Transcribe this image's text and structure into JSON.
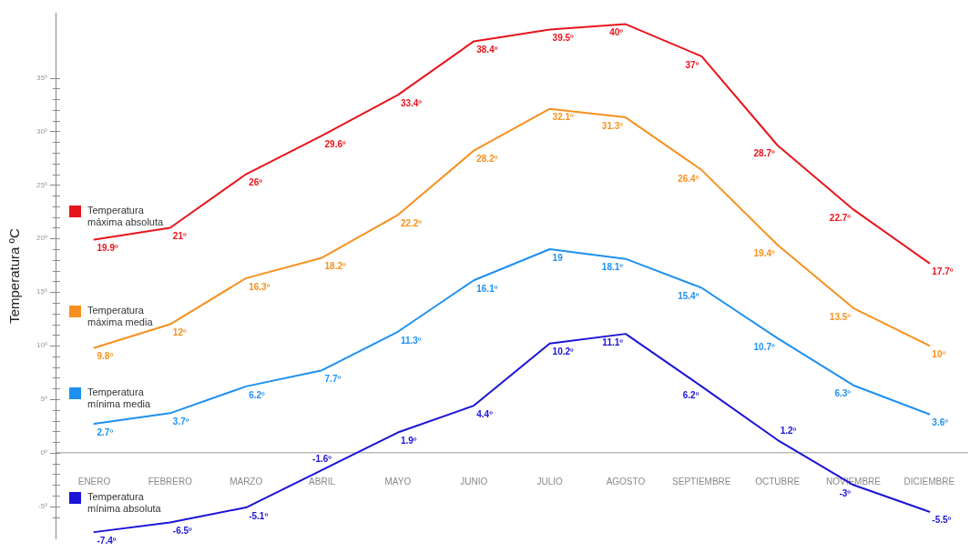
{
  "chart_data": {
    "type": "line",
    "ylabel": "Temperatura ºC",
    "categories": [
      "ENERO",
      "FEBRERO",
      "MARZO",
      "ABRIL",
      "MAYO",
      "JUNIO",
      "JULIO",
      "AGOSTO",
      "SEPTIEMBRE",
      "OCTUBRE",
      "NOVIEMBRE",
      "DICIEMBRE"
    ],
    "series": [
      {
        "name": "Temperatura máxima absoluta",
        "color": "#e8141b",
        "values": [
          19.9,
          21,
          26,
          29.6,
          33.4,
          38.4,
          39.5,
          40,
          37,
          28.7,
          22.7,
          17.7
        ],
        "value_labels": [
          "19.9º",
          "21º",
          "26º",
          "29.6º",
          "33.4º",
          "38.4º",
          "39.5º",
          "40º",
          "37º",
          "28.7º",
          "22.7º",
          "17.7º"
        ]
      },
      {
        "name": "Temperatura máxima media",
        "color": "#f7901e",
        "values": [
          9.8,
          12,
          16.3,
          18.2,
          22.2,
          28.2,
          32.1,
          31.3,
          26.4,
          19.4,
          13.5,
          10
        ],
        "value_labels": [
          "9.8º",
          "12º",
          "16.3º",
          "18.2º",
          "22.2º",
          "28.2º",
          "32.1º",
          "31.3º",
          "26.4º",
          "19.4º",
          "13.5º",
          "10º"
        ]
      },
      {
        "name": "Temperatura mínima media",
        "color": "#1e90f0",
        "values": [
          2.7,
          3.7,
          6.2,
          7.7,
          11.3,
          16.1,
          19,
          18.1,
          15.4,
          10.7,
          6.3,
          3.6
        ],
        "value_labels": [
          "2.7º",
          "3.7º",
          "6.2º",
          "7.7º",
          "11.3º",
          "16.1º",
          "19",
          "18.1º",
          "15.4º",
          "10.7º",
          "6.3º",
          "3.6º"
        ]
      },
      {
        "name": "Temperatura mínima absoluta",
        "color": "#1a13d8",
        "values": [
          -7.4,
          -6.5,
          -5.1,
          -1.6,
          1.9,
          4.4,
          10.2,
          11.1,
          6.2,
          1.2,
          -3,
          -5.5
        ],
        "value_labels": [
          "-7.4º",
          "-6.5º",
          "-5.1º",
          "-1.6º",
          "1.9º",
          "4.4º",
          "10.2º",
          "11.1º",
          "6.2º",
          "1.2º",
          "-3º",
          "-5.5º"
        ]
      }
    ],
    "ylim": [
      -8,
      41
    ],
    "yticks": [
      {
        "value": -6,
        "label": null
      },
      {
        "value": -5,
        "label": "-5º"
      },
      {
        "value": -4,
        "label": null
      },
      {
        "value": -3,
        "label": null
      },
      {
        "value": -2,
        "label": null
      },
      {
        "value": -1,
        "label": null
      },
      {
        "value": 0,
        "label": "0º"
      },
      {
        "value": 1,
        "label": null
      },
      {
        "value": 2,
        "label": null
      },
      {
        "value": 3,
        "label": null
      },
      {
        "value": 4,
        "label": null
      },
      {
        "value": 5,
        "label": "5º"
      },
      {
        "value": 6,
        "label": null
      },
      {
        "value": 7,
        "label": null
      },
      {
        "value": 8,
        "label": null
      },
      {
        "value": 9,
        "label": null
      },
      {
        "value": 10,
        "label": "10º"
      },
      {
        "value": 11,
        "label": null
      },
      {
        "value": 12,
        "label": null
      },
      {
        "value": 13,
        "label": null
      },
      {
        "value": 14,
        "label": null
      },
      {
        "value": 15,
        "label": "15º"
      },
      {
        "value": 16,
        "label": null
      },
      {
        "value": 17,
        "label": null
      },
      {
        "value": 18,
        "label": null
      },
      {
        "value": 19,
        "label": null
      },
      {
        "value": 20,
        "label": "20º"
      },
      {
        "value": 21,
        "label": null
      },
      {
        "value": 22,
        "label": null
      },
      {
        "value": 23,
        "label": null
      },
      {
        "value": 24,
        "label": null
      },
      {
        "value": 25,
        "label": "25º"
      },
      {
        "value": 26,
        "label": null
      },
      {
        "value": 27,
        "label": null
      },
      {
        "value": 28,
        "label": null
      },
      {
        "value": 29,
        "label": null
      },
      {
        "value": 30,
        "label": "30º"
      },
      {
        "value": 31,
        "label": null
      },
      {
        "value": 32,
        "label": null
      },
      {
        "value": 33,
        "label": null
      },
      {
        "value": 34,
        "label": null
      },
      {
        "value": 35,
        "label": "35º"
      }
    ],
    "grid": false,
    "legend": "left",
    "marker": "none",
    "line_style": "solid"
  }
}
